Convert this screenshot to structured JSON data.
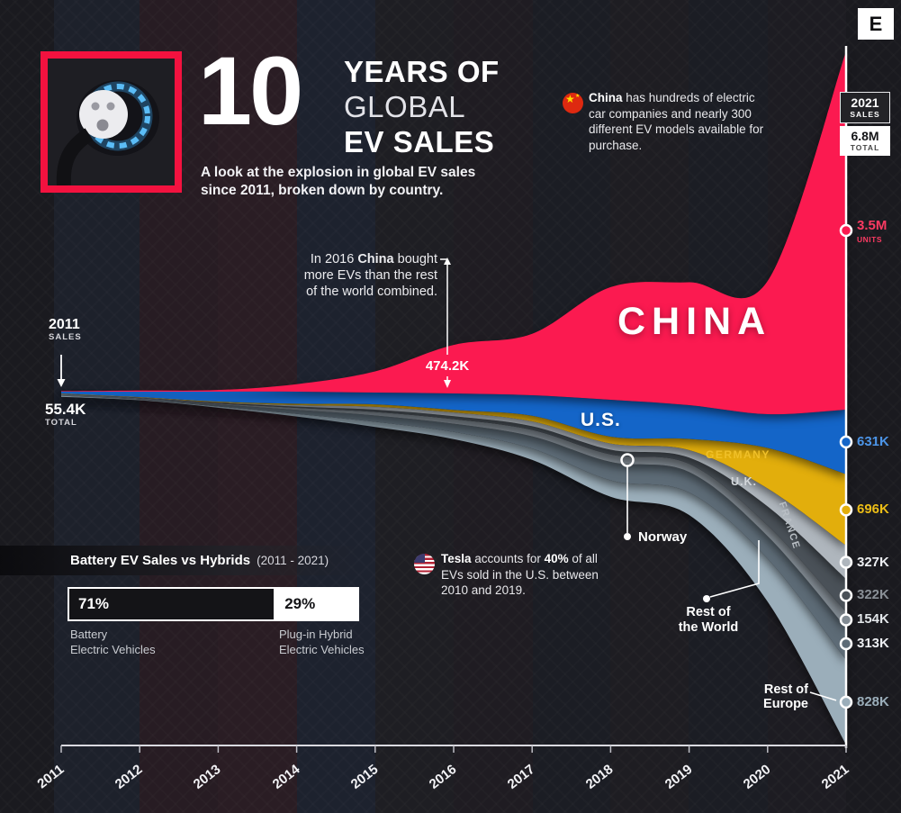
{
  "brand": {
    "logo_letter": "E"
  },
  "header": {
    "big_number": "10",
    "title_lines": [
      "YEARS OF",
      "GLOBAL",
      "EV SALES"
    ],
    "subtitle_lines": [
      "A look at the explosion in global EV sales",
      "since 2011, broken down by country."
    ]
  },
  "badge_2021": {
    "year": "2021",
    "sales_label": "SALES",
    "total_value": "6.8M",
    "total_label": "TOTAL"
  },
  "start_2011": {
    "year": "2011",
    "sales_label": "SALES",
    "total_value": "55.4K",
    "total_label": "TOTAL"
  },
  "notes": {
    "china": {
      "lead": "China",
      "rest": " has hundreds of electric car companies and nearly 300 different EV models available for purchase."
    },
    "china_2016": {
      "line1_pre": "In 2016 ",
      "line1_bold": "China",
      "line1_post": " bought",
      "line2": "more EVs than the rest",
      "line3": "of the world combined.",
      "value": "474.2K"
    },
    "tesla": {
      "lead": "Tesla",
      "mid": " accounts for ",
      "stat": "40%",
      "rest": " of all EVs sold in the U.S. between 2010 and 2019."
    }
  },
  "overlay_labels": {
    "china": "CHINA",
    "us": "U.S.",
    "germany": "GERMANY",
    "uk": "U.K.",
    "france": "FRANCE",
    "norway": "Norway",
    "rest_world": [
      "Rest of",
      "the World"
    ],
    "rest_europe": [
      "Rest of",
      "Europe"
    ]
  },
  "battery_panel": {
    "title": "Battery EV Sales vs Hybrids",
    "range": "(2011 - 2021)",
    "left": {
      "pct": "71%",
      "value": 71,
      "label_lines": [
        "Battery",
        "Electric Vehicles"
      ]
    },
    "right": {
      "pct": "29%",
      "value": 29,
      "label_lines": [
        "Plug-in Hybrid",
        "Electric Vehicles"
      ]
    }
  },
  "chart_data": {
    "type": "area",
    "variant": "stacked-streamgraph",
    "title": "10 Years of Global EV Sales",
    "unit": "thousand vehicles (K)",
    "x": [
      2011,
      2012,
      2013,
      2014,
      2015,
      2016,
      2017,
      2018,
      2019,
      2020,
      2021
    ],
    "x_axis_labels": [
      "2011",
      "2012",
      "2013",
      "2014",
      "2015",
      "2016",
      "2017",
      "2018",
      "2019",
      "2020",
      "2021"
    ],
    "totals": {
      "start_2011": "55.4K",
      "end_2021": "6.8M"
    },
    "grid": false,
    "legend_position": "in-chart labels",
    "annotations": {
      "china_2016_units": "474.2K"
    },
    "series": [
      {
        "name": "China",
        "color": "#FB1A50",
        "label_color": "#FB3A62",
        "final_label": "3.5M",
        "final_sublabel": "UNITS",
        "values": [
          5,
          11,
          16,
          73,
          207,
          474.2,
          600,
          1100,
          1200,
          1300,
          3500
        ]
      },
      {
        "name": "U.S.",
        "color": "#1465C8",
        "label_color": "#4C95E8",
        "final_label": "631K",
        "values": [
          18,
          53,
          97,
          118,
          115,
          160,
          200,
          360,
          330,
          330,
          631
        ]
      },
      {
        "name": "Germany",
        "color": "#E2AE0C",
        "label_color": "#EDBE16",
        "final_label": "696K",
        "values": [
          2,
          3,
          7,
          13,
          23,
          25,
          55,
          68,
          109,
          395,
          696
        ]
      },
      {
        "name": "U.K.",
        "color": "#AFB6BD",
        "label_color": "#EDEFF2",
        "final_label": "327K",
        "values": [
          1.1,
          2,
          4,
          15,
          29,
          37,
          47,
          60,
          73,
          176,
          327
        ]
      },
      {
        "name": "France",
        "color": "#4A5158",
        "label_color": "#8A9097",
        "final_label": "322K",
        "values": [
          2.6,
          6,
          9,
          12,
          23,
          29,
          37,
          46,
          61,
          185,
          322
        ]
      },
      {
        "name": "Norway",
        "color": "#828B93",
        "label_color": "#E3E7EA",
        "final_label": "154K",
        "values": [
          2,
          4,
          8,
          20,
          34,
          45,
          62,
          73,
          80,
          105,
          154
        ]
      },
      {
        "name": "Rest of the World",
        "color": "#5D6B76",
        "label_color": "#EDEFF2",
        "final_label": "313K",
        "values": [
          14.7,
          10,
          20,
          40,
          62,
          80,
          120,
          180,
          200,
          220,
          313
        ]
      },
      {
        "name": "Rest of Europe",
        "color": "#9BAEBA",
        "label_color": "#9BAEBA",
        "final_label": "828K",
        "values": [
          10,
          6,
          12,
          25,
          50,
          70,
          110,
          160,
          220,
          420,
          828
        ]
      }
    ]
  }
}
